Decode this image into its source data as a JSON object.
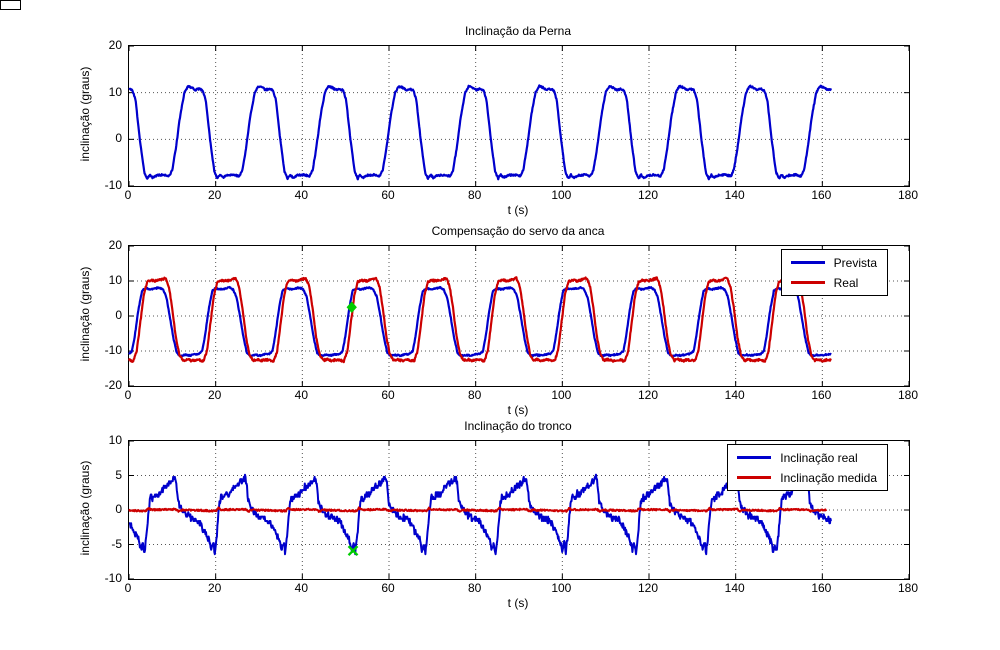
{
  "figure": {
    "background": "#ffffff",
    "axis_color": "#000000",
    "grid_color": "#555555",
    "marker_color": "#00cc00"
  },
  "chart_data": [
    {
      "type": "line",
      "title": "Inclinação da Perna",
      "xlabel": "t (s)",
      "ylabel": "inclinação (graus)",
      "xlim": [
        0,
        180
      ],
      "ylim": [
        -10,
        20
      ],
      "xticks": [
        0,
        20,
        40,
        60,
        80,
        100,
        120,
        140,
        160,
        180
      ],
      "yticks": [
        -10,
        0,
        10,
        20
      ],
      "grid": true,
      "legend": null,
      "period": 16.2,
      "data_span": [
        0,
        162
      ],
      "series": [
        {
          "name": "inclinação da perna",
          "color": "#0000cc",
          "width": 2.2,
          "noise": 0.18,
          "span": 162,
          "cycle": [
            [
              0,
              10.8
            ],
            [
              0.8,
              10.5
            ],
            [
              1.5,
              8.5
            ],
            [
              2.5,
              0
            ],
            [
              3.5,
              -7
            ],
            [
              4.2,
              -8.4
            ],
            [
              4.8,
              -7.6
            ],
            [
              5.4,
              -8.2
            ],
            [
              6.5,
              -7.7
            ],
            [
              8,
              -7.6
            ],
            [
              9.3,
              -7.9
            ],
            [
              10,
              -6.5
            ],
            [
              10.8,
              -2
            ],
            [
              11.8,
              5
            ],
            [
              12.8,
              10
            ],
            [
              13.6,
              11.4
            ],
            [
              14.5,
              11.1
            ],
            [
              15.3,
              10.6
            ],
            [
              16.2,
              10.8
            ]
          ]
        }
      ],
      "markers": []
    },
    {
      "type": "line",
      "title": "Compensação do servo da anca",
      "xlabel": "t (s)",
      "ylabel": "inclinação (graus)",
      "xlim": [
        0,
        180
      ],
      "ylim": [
        -20,
        20
      ],
      "xticks": [
        0,
        20,
        40,
        60,
        80,
        100,
        120,
        140,
        160,
        180
      ],
      "yticks": [
        -20,
        -10,
        0,
        10,
        20
      ],
      "grid": true,
      "legend": [
        "Prevista",
        "Real"
      ],
      "period": 16.2,
      "data_span": [
        0,
        162
      ],
      "series": [
        {
          "name": "Prevista",
          "color": "#0000cc",
          "width": 2.2,
          "noise": 0.2,
          "span": 162,
          "cycle": [
            [
              0,
              -10.8
            ],
            [
              0.7,
              -10
            ],
            [
              1.3,
              -6
            ],
            [
              2.2,
              2
            ],
            [
              3,
              7.2
            ],
            [
              3.8,
              7.9
            ],
            [
              5,
              7.6
            ],
            [
              6,
              7.9
            ],
            [
              7,
              8.1
            ],
            [
              7.8,
              7.6
            ],
            [
              8.6,
              5.5
            ],
            [
              9.4,
              0
            ],
            [
              10.2,
              -6
            ],
            [
              11,
              -10.5
            ],
            [
              11.8,
              -11.4
            ],
            [
              13,
              -11.1
            ],
            [
              14,
              -11.3
            ],
            [
              15,
              -11
            ],
            [
              16.2,
              -10.8
            ]
          ]
        },
        {
          "name": "Real",
          "color": "#cc0000",
          "width": 2.2,
          "noise": 0.3,
          "span": 162,
          "cycle": [
            [
              0,
              -12.6
            ],
            [
              1,
              -12.9
            ],
            [
              1.8,
              -10
            ],
            [
              2.6,
              -2
            ],
            [
              3.4,
              6
            ],
            [
              4.2,
              9.8
            ],
            [
              5.2,
              10.2
            ],
            [
              6.4,
              10
            ],
            [
              7.4,
              10.4
            ],
            [
              8.4,
              10.8
            ],
            [
              9.2,
              8.5
            ],
            [
              10,
              2
            ],
            [
              10.8,
              -6
            ],
            [
              11.6,
              -11
            ],
            [
              12.4,
              -12.7
            ],
            [
              13.4,
              -12.4
            ],
            [
              14.4,
              -12.8
            ],
            [
              15.4,
              -12.5
            ],
            [
              16.2,
              -12.6
            ]
          ]
        }
      ],
      "markers": [
        {
          "t": 51.4,
          "value": 2.5,
          "shape": "diamond",
          "color": "#00cc00"
        }
      ]
    },
    {
      "type": "line",
      "title": "Inclinação do tronco",
      "xlabel": "t (s)",
      "ylabel": "inclinação (graus)",
      "xlim": [
        0,
        180
      ],
      "ylim": [
        -10,
        10
      ],
      "xticks": [
        0,
        20,
        40,
        60,
        80,
        100,
        120,
        140,
        160,
        180
      ],
      "yticks": [
        -10,
        -5,
        0,
        5,
        10
      ],
      "grid": true,
      "legend": [
        "Inclinação real",
        "Inclinação medida"
      ],
      "period": 16.2,
      "data_span": [
        0,
        162
      ],
      "series": [
        {
          "name": "Inclinação real",
          "color": "#0000cc",
          "width": 2,
          "noise": 0.45,
          "quantize": 0.32,
          "span": 162,
          "cycle": [
            [
              0,
              -1.6
            ],
            [
              0.8,
              -2.6
            ],
            [
              1.6,
              -3.6
            ],
            [
              2.3,
              -4.4
            ],
            [
              2.8,
              -6
            ],
            [
              3.2,
              -4.8
            ],
            [
              3.6,
              -6.1
            ],
            [
              4.1,
              -3.5
            ],
            [
              4.6,
              0.5
            ],
            [
              5,
              1.9
            ],
            [
              5.6,
              1.6
            ],
            [
              6.2,
              2.4
            ],
            [
              6.8,
              2.1
            ],
            [
              7.4,
              2.9
            ],
            [
              8.2,
              3.3
            ],
            [
              9,
              3.7
            ],
            [
              9.8,
              4.2
            ],
            [
              10.6,
              4.7
            ],
            [
              11,
              3.5
            ],
            [
              11.3,
              1.2
            ],
            [
              11.8,
              0.4
            ],
            [
              12.6,
              -0.2
            ],
            [
              13.4,
              -0.8
            ],
            [
              14.2,
              -1.1
            ],
            [
              15.2,
              -1.3
            ],
            [
              16.2,
              -1.6
            ]
          ]
        },
        {
          "name": "Inclinação medida",
          "color": "#cc0000",
          "width": 2,
          "noise": 0.12,
          "span": 161,
          "cycle": [
            [
              0,
              -0.05
            ],
            [
              3.8,
              -0.15
            ],
            [
              4.4,
              0.3
            ],
            [
              5,
              0.05
            ],
            [
              8,
              0.05
            ],
            [
              10.8,
              0.1
            ],
            [
              11.4,
              -0.2
            ],
            [
              12.2,
              0
            ],
            [
              16.2,
              -0.05
            ]
          ]
        }
      ],
      "markers": [
        {
          "t": 51.7,
          "value": -5.9,
          "shape": "x",
          "color": "#00cc00"
        }
      ]
    }
  ]
}
